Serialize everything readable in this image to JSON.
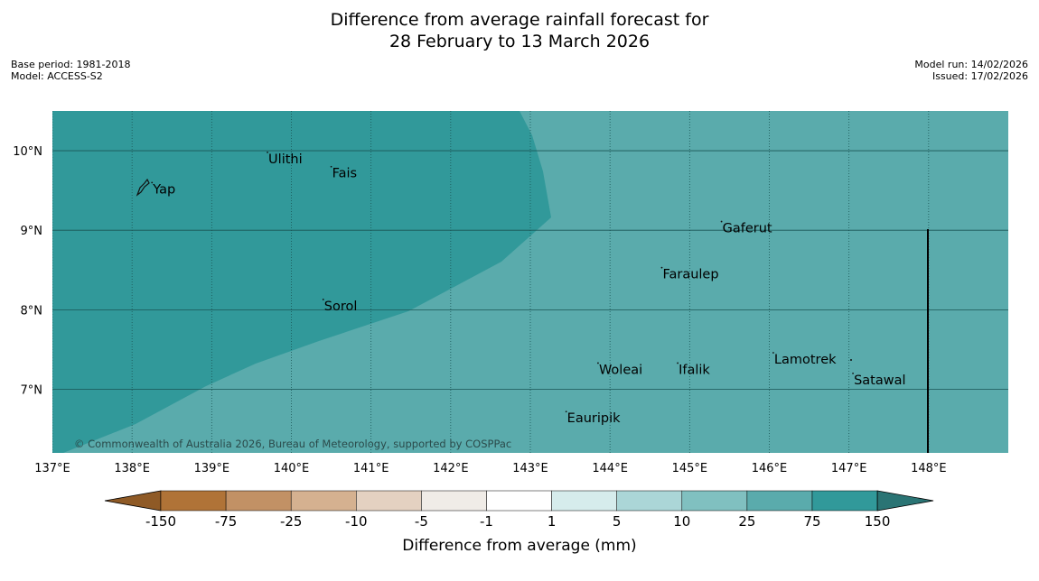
{
  "title": {
    "line1": "Difference from average rainfall forecast for",
    "line2": "28 February to 13 March 2026"
  },
  "meta_left": {
    "base_period": "Base period: 1981-2018",
    "model": "Model: ACCESS-S2"
  },
  "meta_right": {
    "model_run": "Model run: 14/02/2026",
    "issued": "Issued: 17/02/2026"
  },
  "map": {
    "lon_range": [
      137,
      149
    ],
    "lat_range": [
      6.2,
      10.5
    ],
    "lon_ticks": [
      "137°E",
      "138°E",
      "139°E",
      "140°E",
      "141°E",
      "142°E",
      "143°E",
      "144°E",
      "145°E",
      "146°E",
      "147°E",
      "148°E"
    ],
    "lat_ticks": [
      "10°N",
      "9°N",
      "8°N",
      "7°N"
    ],
    "lon_values": [
      137,
      138,
      139,
      140,
      141,
      142,
      143,
      144,
      145,
      146,
      147,
      148
    ],
    "lat_values": [
      10,
      9,
      8,
      7
    ],
    "places": [
      {
        "name": "Yap",
        "lon": 138.25,
        "lat": 9.52
      },
      {
        "name": "Ulithi",
        "lon": 139.7,
        "lat": 9.9
      },
      {
        "name": "Fais",
        "lon": 140.5,
        "lat": 9.72
      },
      {
        "name": "Gaferut",
        "lon": 145.4,
        "lat": 9.03
      },
      {
        "name": "Faraulep",
        "lon": 144.65,
        "lat": 8.45
      },
      {
        "name": "Sorol",
        "lon": 140.4,
        "lat": 8.05
      },
      {
        "name": "Lamotrek",
        "lon": 146.05,
        "lat": 7.38
      },
      {
        "name": "Satawal",
        "lon": 147.05,
        "lat": 7.12
      },
      {
        "name": "Woleai",
        "lon": 143.85,
        "lat": 7.25
      },
      {
        "name": "Ifalik",
        "lon": 144.85,
        "lat": 7.25
      },
      {
        "name": "Eauripik",
        "lon": 143.45,
        "lat": 6.64
      }
    ],
    "copyright": "© Commonwealth of Australia 2026, Bureau of Meteorology, supported by COSPPac",
    "colors": {
      "band_75_150": "#31999a",
      "band_25_75": "#5aabac",
      "grid": "#1a5555"
    }
  },
  "colorbar": {
    "labels": [
      "-150",
      "-75",
      "-25",
      "-10",
      "-5",
      "-1",
      "1",
      "5",
      "10",
      "25",
      "75",
      "150"
    ],
    "colors": [
      "#8f5a26",
      "#b07337",
      "#c29165",
      "#d5b190",
      "#e4d1c1",
      "#f0ece7",
      "#ffffff",
      "#d6ecec",
      "#abd6d7",
      "#80c0c0",
      "#5aabac",
      "#31999a",
      "#2a7474"
    ],
    "xlabel": "Difference from average (mm)"
  }
}
